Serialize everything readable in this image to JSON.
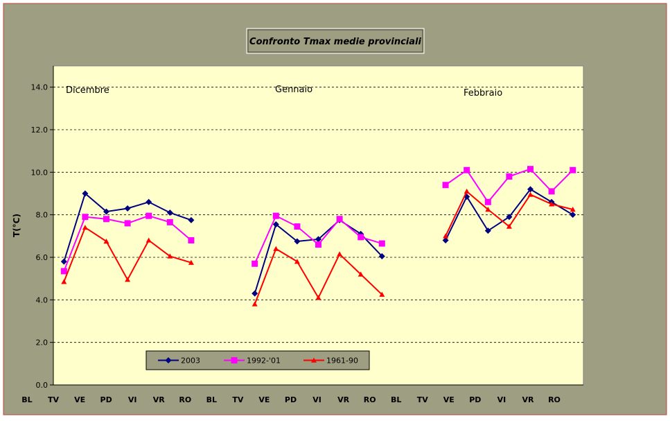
{
  "chart_data": {
    "type": "line",
    "title": "Confronto Tmax medie provinciali",
    "xlabel": "",
    "ylabel": "T(°C)",
    "ylim": [
      0,
      15
    ],
    "yticks": [
      "0.0",
      "2.0",
      "4.0",
      "6.0",
      "8.0",
      "10.0",
      "12.0",
      "14.0"
    ],
    "grid": true,
    "legend_position": "bottom-center",
    "x": [
      1,
      2,
      3,
      4,
      5,
      6,
      7,
      8,
      10,
      11,
      12,
      13,
      14,
      15,
      16,
      17,
      19,
      20,
      21,
      22,
      23,
      24,
      25,
      26
    ],
    "x_tick_labels": [
      "BL",
      "TV",
      "VE",
      "PD",
      "VI",
      "VR",
      "RO",
      "BL",
      "TV",
      "VE",
      "PD",
      "VI",
      "VR",
      "RO",
      "BL",
      "TV",
      "VE",
      "PD",
      "VI",
      "VR",
      "RO"
    ],
    "annotations": [
      "Dicembre",
      "Gennaio",
      "Febbraio"
    ],
    "series": [
      {
        "name": "2003",
        "color": "#000080",
        "marker": "diamond",
        "values": [
          5.8,
          9.0,
          8.15,
          8.3,
          8.6,
          8.1,
          7.75,
          null,
          4.3,
          7.55,
          6.75,
          6.85,
          7.75,
          7.1,
          6.05,
          null,
          6.8,
          8.85,
          7.25,
          7.9,
          9.2,
          8.6,
          8.0,
          null
        ]
      },
      {
        "name": "1992-'01",
        "color": "#ff00ff",
        "marker": "square",
        "values": [
          5.35,
          7.9,
          7.8,
          7.6,
          7.95,
          7.65,
          6.8,
          null,
          5.7,
          7.95,
          7.45,
          6.6,
          7.8,
          6.95,
          6.65,
          null,
          9.4,
          10.1,
          8.6,
          9.8,
          10.15,
          9.1,
          10.1,
          null
        ]
      },
      {
        "name": "1961-90",
        "color": "#ff0000",
        "marker": "triangle",
        "values": [
          4.85,
          7.4,
          6.75,
          4.95,
          6.8,
          6.05,
          5.75,
          null,
          3.8,
          6.4,
          5.8,
          4.1,
          6.15,
          5.2,
          4.25,
          null,
          7.0,
          9.1,
          8.25,
          7.45,
          8.95,
          8.5,
          8.25,
          null
        ]
      }
    ]
  }
}
